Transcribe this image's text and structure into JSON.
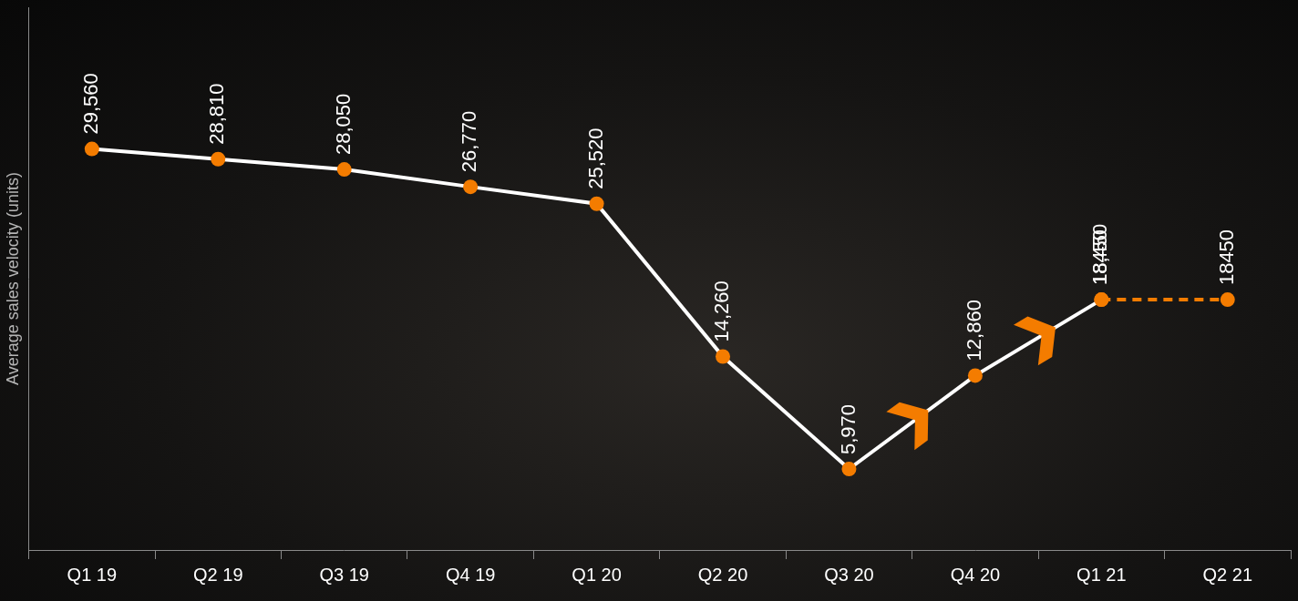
{
  "chart_data": {
    "type": "line",
    "y_label": "Average sales velocity (units)",
    "categories": [
      "Q1 19",
      "Q2 19",
      "Q3 19",
      "Q4 19",
      "Q1 20",
      "Q2 20",
      "Q3 20",
      "Q4 20",
      "Q1 21",
      "Q2 21"
    ],
    "series": [
      {
        "color": "#ffffff",
        "marker": "circle",
        "line_style": "solid",
        "values": [
          29560,
          28810,
          28050,
          26770,
          25520,
          14260,
          5970,
          12860,
          18450,
          null
        ],
        "value_labels": [
          "29,560",
          "28,810",
          "28,050",
          "26,770",
          "25,520",
          "14,260",
          "5,970",
          "12,860",
          "18,450",
          null
        ]
      },
      {
        "color": "#f47c00",
        "marker": "circle",
        "line_style": "dashed",
        "values": [
          null,
          null,
          null,
          null,
          null,
          null,
          null,
          null,
          18450,
          18450
        ]
      }
    ],
    "ylim": [
      0,
      40000
    ],
    "grid": false,
    "data_labels": true,
    "tick_labels": "x"
  }
}
